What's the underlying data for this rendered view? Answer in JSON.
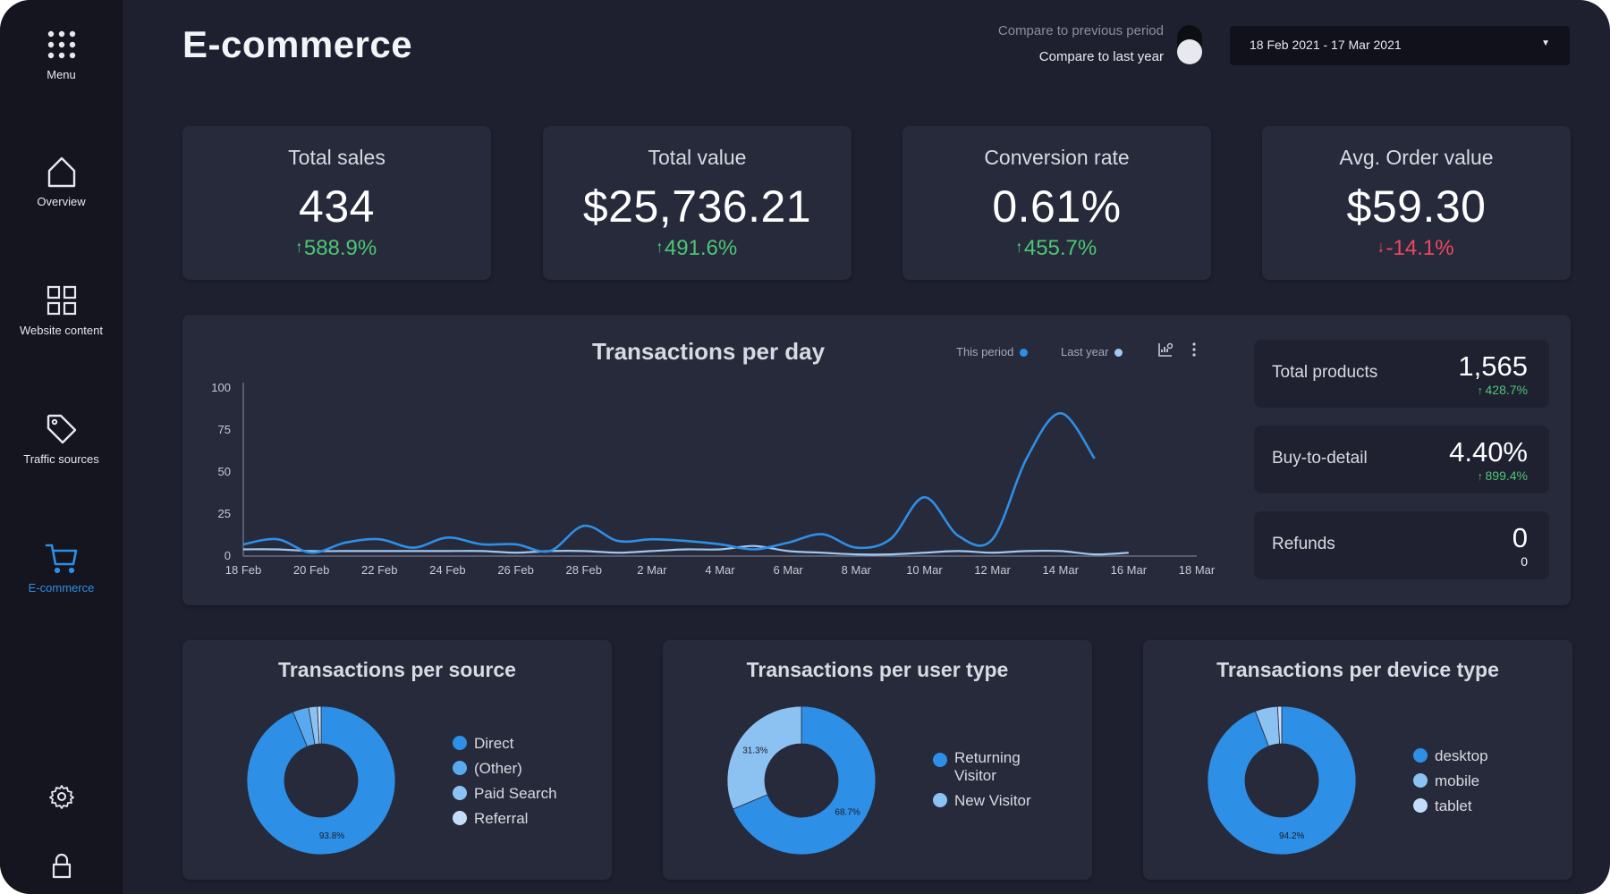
{
  "page": {
    "title": "E-commerce"
  },
  "sidebar": {
    "menu_label": "Menu",
    "items": [
      {
        "label": "Overview",
        "icon": "home-icon"
      },
      {
        "label": "Website content",
        "icon": "grid-icon"
      },
      {
        "label": "Traffic sources",
        "icon": "tag-icon"
      },
      {
        "label": "E-commerce",
        "icon": "cart-icon",
        "active": true
      }
    ],
    "bottom_icons": [
      "gear-icon",
      "lock-icon"
    ]
  },
  "header": {
    "compare_prev": "Compare to previous period",
    "compare_last": "Compare to last year",
    "date_range": "18 Feb 2021 - 17 Mar 2021"
  },
  "kpis": [
    {
      "title": "Total sales",
      "value": "434",
      "change": "588.9%",
      "direction": "up"
    },
    {
      "title": "Total value",
      "value": "$25,736.21",
      "change": "491.6%",
      "direction": "up"
    },
    {
      "title": "Conversion rate",
      "value": "0.61%",
      "change": "455.7%",
      "direction": "up"
    },
    {
      "title": "Avg. Order value",
      "value": "$59.30",
      "change": "-14.1%",
      "direction": "down"
    }
  ],
  "side_metrics": [
    {
      "label": "Total products",
      "value": "1,565",
      "change": "428.7%"
    },
    {
      "label": "Buy-to-detail",
      "value": "4.40%",
      "change": "899.4%"
    },
    {
      "label": "Refunds",
      "value": "0",
      "change": "0"
    }
  ],
  "colors": {
    "this_period": "#2d8fe6",
    "last_year": "#9ec9f2",
    "up": "#4cc774",
    "down": "#f0475f"
  },
  "chart_data": [
    {
      "type": "line",
      "title": "Transactions per day",
      "x": [
        "18 Feb",
        "19 Feb",
        "20 Feb",
        "21 Feb",
        "22 Feb",
        "23 Feb",
        "24 Feb",
        "25 Feb",
        "26 Feb",
        "27 Feb",
        "28 Feb",
        "1 Mar",
        "2 Mar",
        "3 Mar",
        "4 Mar",
        "5 Mar",
        "6 Mar",
        "7 Mar",
        "8 Mar",
        "9 Mar",
        "10 Mar",
        "11 Mar",
        "12 Mar",
        "13 Mar",
        "14 Mar",
        "15 Mar",
        "16 Mar",
        "17 Mar"
      ],
      "x_ticks": [
        "18 Feb",
        "20 Feb",
        "22 Feb",
        "24 Feb",
        "26 Feb",
        "28 Feb",
        "2 Mar",
        "4 Mar",
        "6 Mar",
        "8 Mar",
        "10 Mar",
        "12 Mar",
        "14 Mar",
        "16 Mar",
        "18 Mar"
      ],
      "series": [
        {
          "name": "This period",
          "values": [
            7,
            10,
            2,
            8,
            10,
            5,
            11,
            7,
            7,
            3,
            18,
            9,
            10,
            9,
            7,
            4,
            8,
            13,
            5,
            10,
            35,
            12,
            10,
            58,
            85,
            58,
            null,
            null
          ]
        },
        {
          "name": "Last year",
          "values": [
            4,
            4,
            3,
            3,
            3,
            3,
            3,
            3,
            2,
            3,
            3,
            2,
            3,
            4,
            4,
            6,
            3,
            2,
            1,
            1,
            2,
            3,
            2,
            3,
            3,
            1,
            2,
            null
          ]
        }
      ],
      "ylim": [
        0,
        100
      ],
      "y_ticks": [
        0,
        25,
        50,
        75,
        100
      ],
      "grid": false,
      "legend": "top-right"
    },
    {
      "type": "pie",
      "title": "Transactions per source",
      "labels": [
        "Direct",
        "(Other)",
        "Paid Search",
        "Referral"
      ],
      "values": [
        93.8,
        3.5,
        1.9,
        0.8
      ],
      "slice_label": "93.8%",
      "colors": [
        "#2d8fe6",
        "#5aa8ee",
        "#8cc2f2",
        "#c4defa"
      ]
    },
    {
      "type": "pie",
      "title": "Transactions per user type",
      "labels": [
        "Returning Visitor",
        "New Visitor"
      ],
      "label_lines": [
        [
          "Returning",
          "Visitor"
        ],
        [
          "New Visitor"
        ]
      ],
      "values": [
        68.7,
        31.3
      ],
      "slice_labels": [
        "68.7%",
        "31.3%"
      ],
      "colors": [
        "#2d8fe6",
        "#8cc2f2"
      ]
    },
    {
      "type": "pie",
      "title": "Transactions per device type",
      "labels": [
        "desktop",
        "mobile",
        "tablet"
      ],
      "values": [
        94.2,
        4.9,
        0.9
      ],
      "slice_label": "94.2%",
      "colors": [
        "#2d8fe6",
        "#8cc2f2",
        "#c4defa"
      ]
    }
  ]
}
